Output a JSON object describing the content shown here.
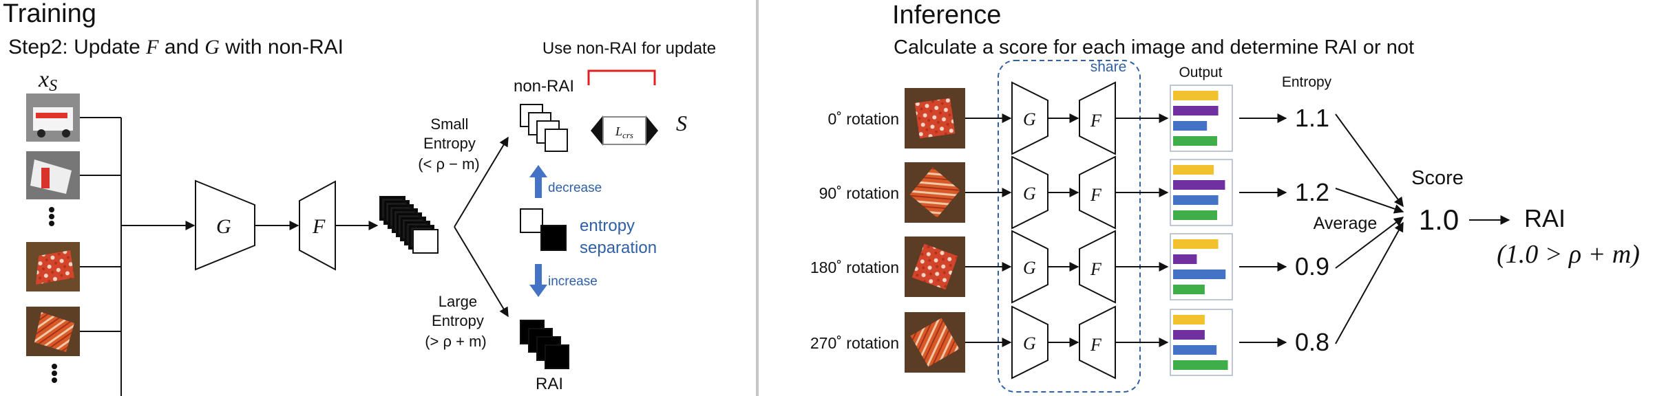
{
  "training": {
    "title": "Training",
    "step_prefix": "Step2: Update ",
    "step_f": "F",
    "step_and": " and ",
    "step_g": "G",
    "step_suffix": " with non-RAI",
    "xs_label": "x",
    "xs_sub": "S",
    "g_label": "G",
    "f_label": "F",
    "small_entropy": [
      "Small",
      "Entropy",
      "(< ρ − m)"
    ],
    "large_entropy": [
      "Large",
      "Entropy",
      "(> ρ + m)"
    ],
    "non_rai_label": "non-RAI",
    "rai_label": "RAI",
    "use_non_rai": "Use non-RAI for update",
    "loss_label": "L",
    "loss_sub": "crs",
    "s_label": "S",
    "decrease_label": "decrease",
    "increase_label": "increase",
    "separation_label": [
      "entropy",
      "separation"
    ]
  },
  "inference": {
    "title": "Inference",
    "subtitle": "Calculate a score for each image and determine RAI or not",
    "share_label": "share",
    "output_label": "Output",
    "entropy_label": "Entropy",
    "score_label": "Score",
    "average_label": "Average",
    "score_value": "1.0",
    "rai_result": "RAI",
    "condition": "(1.0 > ρ + m)",
    "rows": [
      {
        "rotation": "0˚ rotation",
        "entropy": "1.1",
        "bars": [
          0.8,
          0.8,
          0.6,
          0.78
        ]
      },
      {
        "rotation": "90˚ rotation",
        "entropy": "1.2",
        "bars": [
          0.72,
          0.92,
          0.8,
          0.78
        ]
      },
      {
        "rotation": "180˚ rotation",
        "entropy": "0.9",
        "bars": [
          0.8,
          0.42,
          0.93,
          0.56
        ]
      },
      {
        "rotation": "270˚ rotation",
        "entropy": "0.8",
        "bars": [
          0.56,
          0.56,
          0.77,
          0.97
        ]
      }
    ],
    "bar_colors": [
      "#f2c12e",
      "#7030a0",
      "#4472c4",
      "#3fae49"
    ]
  }
}
